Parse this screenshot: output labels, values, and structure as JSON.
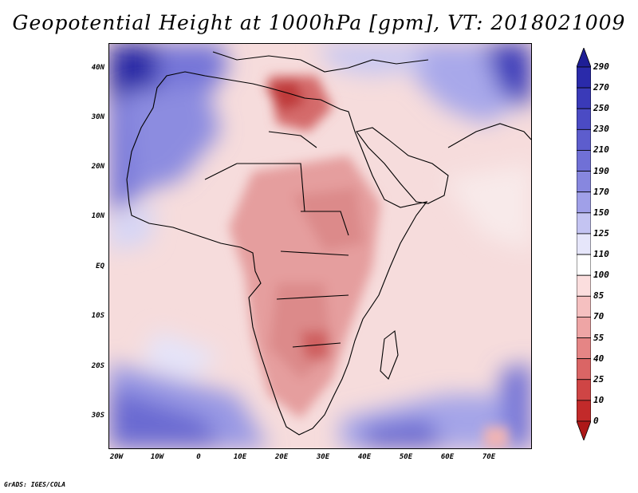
{
  "title": "Geopotential Height at 1000hPa [gpm], VT: 2018021009",
  "credit": "GrADS: IGES/COLA",
  "map": {
    "region": "Africa",
    "y_ticks": [
      "40N",
      "30N",
      "20N",
      "10N",
      "EQ",
      "10S",
      "20S",
      "30S"
    ],
    "x_ticks": [
      "20W",
      "10W",
      "0",
      "10E",
      "20E",
      "30E",
      "40E",
      "50E",
      "60E",
      "70E"
    ],
    "lon_range": [
      -22,
      80
    ],
    "lat_range": [
      -37,
      45
    ]
  },
  "colorbar": {
    "labels": [
      "290",
      "270",
      "250",
      "230",
      "210",
      "190",
      "170",
      "150",
      "125",
      "110",
      "100",
      "85",
      "70",
      "55",
      "40",
      "25",
      "10",
      "0"
    ],
    "colors": [
      "#1e1e96",
      "#2a2aaa",
      "#3a3ab8",
      "#4b4bc4",
      "#5d5dcd",
      "#7070d6",
      "#8787df",
      "#a0a0e8",
      "#c4c4f2",
      "#e6e6fa",
      "#ffffff",
      "#fbdede",
      "#f5c0c0",
      "#eea5a5",
      "#e58585",
      "#da6565",
      "#cf4545",
      "#c22a2a",
      "#ad1818"
    ]
  }
}
